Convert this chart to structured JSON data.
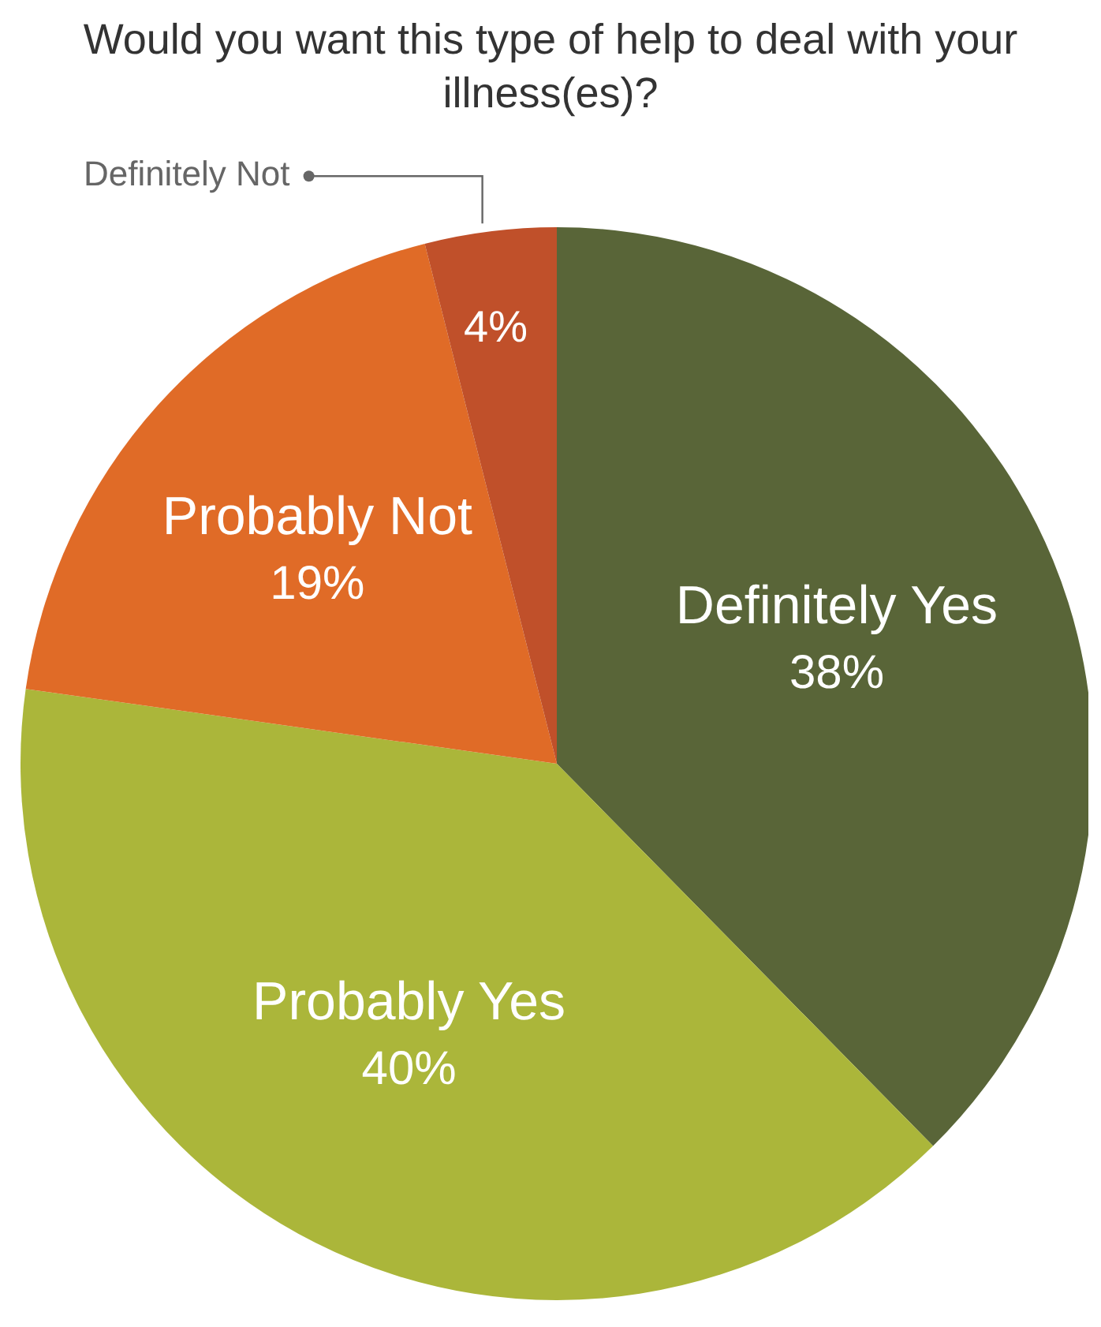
{
  "chart_data": {
    "type": "pie",
    "title": "Would you want this type of help to deal with your illness(es)?",
    "categories": [
      "Definitely Yes",
      "Probably Yes",
      "Probably Not",
      "Definitely Not"
    ],
    "values": [
      38,
      40,
      19,
      4
    ],
    "colors": [
      "#596538",
      "#abb63a",
      "#e06b27",
      "#c0502a"
    ],
    "value_labels": [
      "38%",
      "40%",
      "19%",
      "4%"
    ],
    "legend": false
  }
}
